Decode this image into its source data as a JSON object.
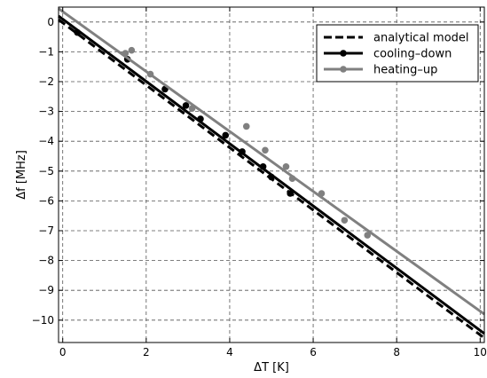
{
  "chart_data": {
    "type": "scatter",
    "xlabel": "ΔT [K]",
    "ylabel": "Δf [MHz]",
    "xlim": [
      -0.1,
      10.1
    ],
    "ylim": [
      -10.75,
      0.5
    ],
    "xticks": [
      0,
      2,
      4,
      6,
      8,
      10
    ],
    "yticks": [
      0,
      -1,
      -2,
      -3,
      -4,
      -5,
      -6,
      -7,
      -8,
      -9,
      -10
    ],
    "grid": true,
    "legend_position": "top-right",
    "series": [
      {
        "name": "analytical model",
        "kind": "line",
        "style": "dashed",
        "color": "#000000",
        "x": [
          -0.1,
          10.1
        ],
        "y": [
          0.08,
          -10.6
        ]
      },
      {
        "name": "cooling–down",
        "kind": "line+points",
        "color": "#000000",
        "fit": {
          "x": [
            -0.1,
            10.1
          ],
          "y": [
            0.2,
            -10.45
          ]
        },
        "x": [
          0.35,
          1.55,
          2.45,
          2.95,
          3.3,
          3.9,
          4.3,
          4.8,
          5.0,
          5.45
        ],
        "y": [
          -0.35,
          -1.25,
          -2.25,
          -2.8,
          -3.25,
          -3.8,
          -4.35,
          -4.85,
          -5.2,
          -5.75
        ]
      },
      {
        "name": "heating–up",
        "kind": "line+points",
        "color": "#808080",
        "fit": {
          "x": [
            -0.1,
            10.1
          ],
          "y": [
            0.45,
            -9.8
          ]
        },
        "x": [
          1.5,
          1.65,
          2.1,
          3.1,
          4.4,
          4.85,
          5.35,
          5.5,
          6.2,
          6.75,
          7.3
        ],
        "y": [
          -1.05,
          -0.95,
          -1.75,
          -2.9,
          -3.5,
          -4.3,
          -4.85,
          -5.25,
          -5.75,
          -6.65,
          -7.15
        ]
      }
    ]
  }
}
